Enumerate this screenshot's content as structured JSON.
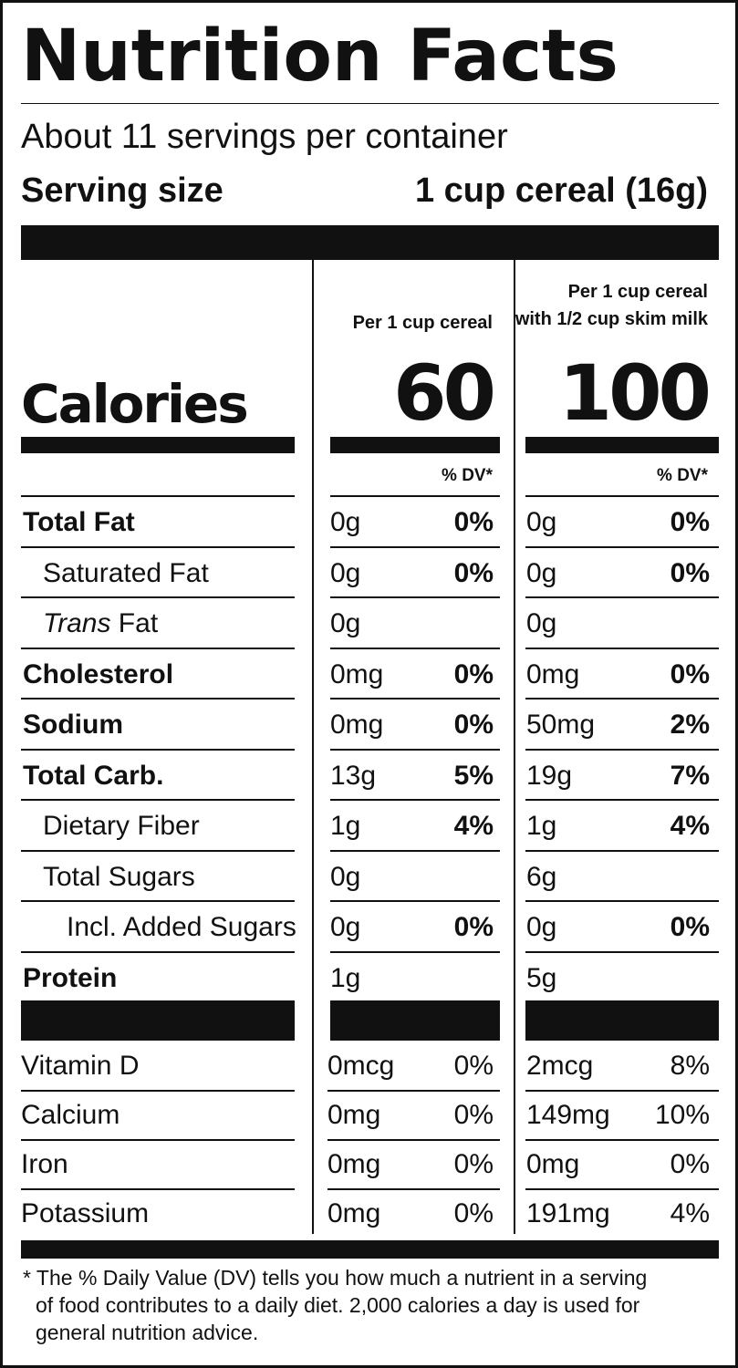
{
  "title": "Nutrition Facts",
  "servings_per_container": "About 11 servings per container",
  "serving_size": {
    "label": "Serving size",
    "value": "1 cup cereal (16g)"
  },
  "columns": [
    {
      "header_lines": [
        "Per 1 cup cereal"
      ],
      "calories": "60"
    },
    {
      "header_lines": [
        "Per 1 cup cereal",
        "with 1/2 cup skim milk"
      ],
      "calories": "100"
    }
  ],
  "calories_label": "Calories",
  "dv_header": "% DV*",
  "nutrients": [
    {
      "name": "Total Fat",
      "bold": true,
      "indent": 0,
      "values": [
        {
          "amount": "0g",
          "dv": "0%"
        },
        {
          "amount": "0g",
          "dv": "0%"
        }
      ]
    },
    {
      "name": "Saturated Fat",
      "bold": false,
      "indent": 1,
      "values": [
        {
          "amount": "0g",
          "dv": "0%"
        },
        {
          "amount": "0g",
          "dv": "0%"
        }
      ]
    },
    {
      "name_italic": "Trans",
      "name": " Fat",
      "bold": false,
      "indent": 1,
      "values": [
        {
          "amount": "0g",
          "dv": ""
        },
        {
          "amount": "0g",
          "dv": ""
        }
      ]
    },
    {
      "name": "Cholesterol",
      "bold": true,
      "indent": 0,
      "values": [
        {
          "amount": "0mg",
          "dv": "0%"
        },
        {
          "amount": "0mg",
          "dv": "0%"
        }
      ]
    },
    {
      "name": "Sodium",
      "bold": true,
      "indent": 0,
      "values": [
        {
          "amount": "0mg",
          "dv": "0%"
        },
        {
          "amount": "50mg",
          "dv": "2%"
        }
      ]
    },
    {
      "name": "Total Carb.",
      "bold": true,
      "indent": 0,
      "values": [
        {
          "amount": "13g",
          "dv": "5%"
        },
        {
          "amount": "19g",
          "dv": "7%"
        }
      ]
    },
    {
      "name": "Dietary Fiber",
      "bold": false,
      "indent": 1,
      "values": [
        {
          "amount": "1g",
          "dv": "4%"
        },
        {
          "amount": "1g",
          "dv": "4%"
        }
      ]
    },
    {
      "name": "Total Sugars",
      "bold": false,
      "indent": 1,
      "values": [
        {
          "amount": "0g",
          "dv": ""
        },
        {
          "amount": "6g",
          "dv": ""
        }
      ]
    },
    {
      "name": "Incl. Added Sugars",
      "bold": false,
      "indent": 2,
      "values": [
        {
          "amount": "0g",
          "dv": "0%"
        },
        {
          "amount": "0g",
          "dv": "0%"
        }
      ]
    },
    {
      "name": "Protein",
      "bold": true,
      "indent": 0,
      "values": [
        {
          "amount": "1g",
          "dv": ""
        },
        {
          "amount": "5g",
          "dv": ""
        }
      ]
    }
  ],
  "vitamins": [
    {
      "name": "Vitamin D",
      "values": [
        {
          "amount": "0mcg",
          "dv": "0%"
        },
        {
          "amount": "2mcg",
          "dv": "8%"
        }
      ]
    },
    {
      "name": "Calcium",
      "values": [
        {
          "amount": "0mg",
          "dv": "0%"
        },
        {
          "amount": "149mg",
          "dv": "10%"
        }
      ]
    },
    {
      "name": "Iron",
      "values": [
        {
          "amount": "0mg",
          "dv": "0%"
        },
        {
          "amount": "0mg",
          "dv": "0%"
        }
      ]
    },
    {
      "name": "Potassium",
      "values": [
        {
          "amount": "0mg",
          "dv": "0%"
        },
        {
          "amount": "191mg",
          "dv": "4%"
        }
      ]
    }
  ],
  "footnote_lines": [
    "* The % Daily Value (DV) tells you how much a nutrient in a serving",
    "of food contributes to a daily diet. 2,000 calories a day is used for",
    "general nutrition advice."
  ]
}
